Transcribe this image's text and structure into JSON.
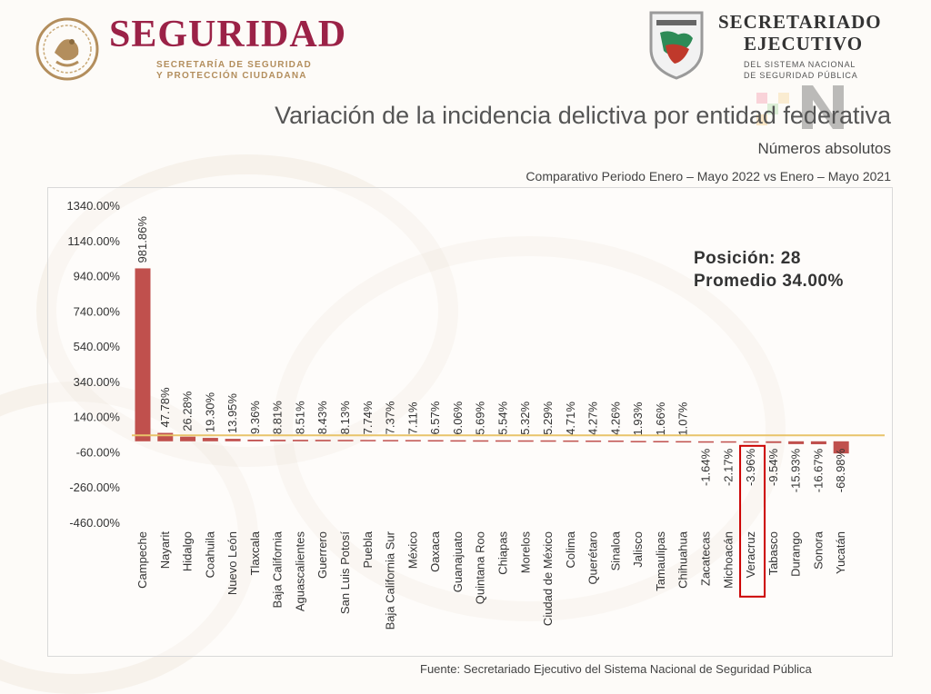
{
  "header": {
    "left_brand": "SEGURIDAD",
    "left_sub1": "SECRETARÍA DE SEGURIDAD",
    "left_sub2": "Y PROTECCIÓN CIUDADANA",
    "right_title1": "SECRETARIADO",
    "right_title2": "EJECUTIVO",
    "right_sub1": "DEL SISTEMA NACIONAL",
    "right_sub2": "DE SEGURIDAD PÚBLICA",
    "logo_left_icon": "mexican-coat-of-arms-icon",
    "logo_right_icon": "secretariado-shield-icon",
    "watermark_logo_icon": "colorful-n-logo-icon"
  },
  "notes": {
    "position": "Posición: 28",
    "average": "Promedio 34.00%"
  },
  "source": "Fuente: Secretariado Ejecutivo del Sistema Nacional de Seguridad Pública",
  "colors": {
    "bar": "#c0504d",
    "average_line": "#e8c36a",
    "highlight_box": "#cc0000",
    "brand_red": "#9b2247",
    "brand_gold": "#b38e5d"
  },
  "chart_data": {
    "type": "bar",
    "title": "Variación de la incidencia delictiva por entidad federativa",
    "subtitle": "Números absolutos",
    "period": "Comparativo Periodo Enero – Mayo 2022 vs Enero – Mayo 2021",
    "categories": [
      "Campeche",
      "Nayarit",
      "Hidalgo",
      "Coahuila",
      "Nuevo León",
      "Tlaxcala",
      "Baja California",
      "Aguascalientes",
      "Guerrero",
      "San Luis Potosí",
      "Puebla",
      "Baja California Sur",
      "México",
      "Oaxaca",
      "Guanajuato",
      "Quintana Roo",
      "Chiapas",
      "Morelos",
      "Ciudad de México",
      "Colima",
      "Querétaro",
      "Sinaloa",
      "Jalisco",
      "Tamaulipas",
      "Chihuahua",
      "Zacatecas",
      "Michoacán",
      "Veracruz",
      "Tabasco",
      "Durango",
      "Sonora",
      "Yucatán"
    ],
    "values": [
      981.86,
      47.78,
      26.28,
      19.3,
      13.95,
      9.36,
      8.81,
      8.51,
      8.43,
      8.13,
      7.74,
      7.37,
      7.11,
      6.57,
      6.06,
      5.69,
      5.54,
      5.32,
      5.29,
      4.71,
      4.27,
      4.26,
      1.93,
      1.66,
      1.07,
      -1.64,
      -2.17,
      -3.96,
      -9.54,
      -15.93,
      -16.67,
      -68.98
    ],
    "value_labels": [
      "981.86%",
      "47.78%",
      "26.28%",
      "19.30%",
      "13.95%",
      "9.36%",
      "8.81%",
      "8.51%",
      "8.43%",
      "8.13%",
      "7.74%",
      "7.37%",
      "7.11%",
      "6.57%",
      "6.06%",
      "5.69%",
      "5.54%",
      "5.32%",
      "5.29%",
      "4.71%",
      "4.27%",
      "4.26%",
      "1.93%",
      "1.66%",
      "1.07%",
      "-1.64%",
      "-2.17%",
      "-3.96%",
      "-9.54%",
      "-15.93%",
      "-16.67%",
      "-68.98%"
    ],
    "ylim": [
      -460,
      1340
    ],
    "yticks": [
      1340,
      1140,
      940,
      740,
      540,
      340,
      140,
      -60,
      -260,
      -460
    ],
    "ytick_labels": [
      "1340.00%",
      "1140.00%",
      "940.00%",
      "740.00%",
      "540.00%",
      "340.00%",
      "140.00%",
      "-60.00%",
      "-260.00%",
      "-460.00%"
    ],
    "average_value": 34.0,
    "highlighted_category": "Veracruz",
    "grid": false,
    "legend": "none"
  }
}
